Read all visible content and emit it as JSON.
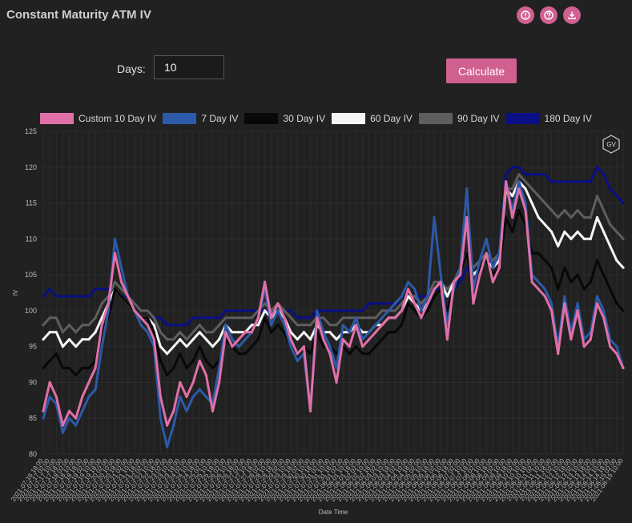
{
  "header": {
    "title": "Constant Maturity ATM IV",
    "icons": [
      "info-icon",
      "help-icon",
      "download-icon"
    ]
  },
  "form": {
    "days_label": "Days:",
    "days_value": "10",
    "calculate_label": "Calculate"
  },
  "watermark": "GV",
  "colors": {
    "accent": "#d06090",
    "background": "#212121"
  },
  "chart_data": {
    "type": "line",
    "xlabel": "Date Time",
    "ylabel": "IV",
    "ylim": [
      80,
      125
    ],
    "yticks": [
      80,
      85,
      90,
      95,
      100,
      105,
      110,
      115,
      120,
      125
    ],
    "grid": true,
    "legend_position": "top",
    "x": [
      "2021-07-16 18:00",
      "2021-07-17 02:00",
      "2021-07-17 10:00",
      "2021-07-17 18:00",
      "2021-07-18 02:00",
      "2021-07-18 10:00",
      "2021-07-18 18:00",
      "2021-07-19 02:00",
      "2021-07-19 10:00",
      "2021-07-19 18:00",
      "2021-07-20 02:00",
      "2021-07-20 10:00",
      "2021-07-20 18:00",
      "2021-07-21 02:00",
      "2021-07-21 10:00",
      "2021-07-21 18:00",
      "2021-07-22 02:00",
      "2021-07-22 10:00",
      "2021-07-22 18:00",
      "2021-07-23 02:00",
      "2021-07-23 10:00",
      "2021-07-23 18:00",
      "2021-07-24 02:00",
      "2021-07-24 10:00",
      "2021-07-24 18:00",
      "2021-07-25 02:00",
      "2021-07-25 10:00",
      "2021-07-25 18:00",
      "2021-07-26 02:00",
      "2021-07-26 10:00",
      "2021-07-26 18:00",
      "2021-07-27 02:00",
      "2021-07-27 10:00",
      "2021-07-27 18:00",
      "2021-07-28 02:00",
      "2021-07-28 10:00",
      "2021-07-28 18:00",
      "2021-07-29 02:00",
      "2021-07-29 10:00",
      "2021-07-29 18:00",
      "2021-07-30 02:00",
      "2021-07-30 10:00",
      "2021-07-30 18:00",
      "2021-07-31 02:00",
      "2021-07-31 10:00",
      "2021-07-31 18:00",
      "2021-08-01 02:00",
      "2021-08-01 10:00",
      "2021-08-01 18:00",
      "2021-08-02 02:00",
      "2021-08-02 10:00",
      "2021-08-02 18:00",
      "2021-08-03 02:00",
      "2021-08-03 10:00",
      "2021-08-03 18:00",
      "2021-08-04 02:00",
      "2021-08-04 10:00",
      "2021-08-04 18:00",
      "2021-08-05 02:00",
      "2021-08-05 10:00",
      "2021-08-05 18:00",
      "2021-08-06 02:00",
      "2021-08-06 10:00",
      "2021-08-06 18:00",
      "2021-08-07 02:00",
      "2021-08-07 10:00",
      "2021-08-07 18:00",
      "2021-08-08 02:00",
      "2021-08-08 10:00",
      "2021-08-08 18:00",
      "2021-08-09 02:00",
      "2021-08-09 10:00",
      "2021-08-09 18:00",
      "2021-08-10 02:00",
      "2021-08-10 10:00",
      "2021-08-10 18:00",
      "2021-08-11 02:00",
      "2021-08-11 10:00",
      "2021-08-11 18:00",
      "2021-08-12 02:00",
      "2021-08-12 10:00",
      "2021-08-12 18:00",
      "2021-08-13 02:00",
      "2021-08-13 10:00",
      "2021-08-13 18:00",
      "2021-08-14 02:00",
      "2021-08-14 10:00",
      "2021-08-14 18:00",
      "2021-08-15 02:00",
      "2021-08-15 10:00"
    ],
    "xtick_labels": [
      "2021-07-16 18:00",
      "2021-07-17 02:00",
      "2021-07-17 10:00",
      "2021-07-17 18:00",
      "2021-07-18 02:00",
      "2021-07-18 10:00",
      "2021-07-18 18:00",
      "2021-07-19 02:00",
      "2021-07-19 10:00",
      "2021-07-19 18:00",
      "2021-07-20 02:00",
      "2021-07-20 10:00",
      "2021-07-20 18:00",
      "2021-07-21 02:00",
      "2021-07-21 10:00",
      "2021-07-21 18:00",
      "2021-07-22 02:00",
      "2021-07-22 10:00",
      "2021-07-22 18:00",
      "2021-07-23 02:00",
      "2021-07-23 10:00",
      "2021-07-23 18:00",
      "2021-07-24 02:00",
      "2021-07-24 10:00",
      "2021-07-24 18:00",
      "2021-07-25 02:00",
      "2021-07-25 10:00",
      "2021-07-25 18:00",
      "2021-07-26 02:00",
      "2021-07-26 10:00",
      "2021-07-26 18:00",
      "2021-07-27 02:00",
      "2021-07-27 10:00",
      "2021-07-27 18:00",
      "2021-07-28 02:00",
      "2021-07-28 10:00",
      "2021-07-28 18:00",
      "2021-07-29 02:00",
      "2021-07-29 10:00",
      "2021-07-29 18:00",
      "2021-07-30 02:00",
      "2021-07-30 10:00",
      "2021-07-30 18:00",
      "2021-07-31 02:00",
      "2021-07-31 10:00",
      "2021-07-31 18:00",
      "2021-08-01 02:00",
      "2021-08-01 10:00",
      "2021-08-01 18:00",
      "2021-08-02 02:00",
      "2021-08-02 10:00",
      "2021-08-02 18:00",
      "2021-08-03 02:00",
      "2021-08-03 10:00",
      "2021-08-03 18:00",
      "2021-08-04 02:00",
      "2021-08-04 10:00",
      "2021-08-04 18:00",
      "2021-08-05 02:00",
      "2021-08-05 10:00",
      "2021-08-05 18:00",
      "2021-08-06 02:00",
      "2021-08-06 10:00",
      "2021-08-06 18:00",
      "2021-08-07 02:00",
      "2021-08-07 10:00",
      "2021-08-07 18:00",
      "2021-08-08 02:00",
      "2021-08-08 10:00",
      "2021-08-08 18:00",
      "2021-08-09 02:00",
      "2021-08-09 10:00",
      "2021-08-09 18:00",
      "2021-08-10 02:00",
      "2021-08-10 10:00",
      "2021-08-10 18:00",
      "2021-08-11 02:00",
      "2021-08-11 10:00",
      "2021-08-11 18:00",
      "2021-08-12 02:00",
      "2021-08-12 10:00",
      "2021-08-12 18:00",
      "2021-08-13 02:00",
      "2021-08-13 10:00",
      "2021-08-13 18:00",
      "2021-08-14 02:00",
      "2021-08-14 10:00",
      "2021-08-14 18:00",
      "2021-08-15 02:00",
      "2021-08-15 10:00"
    ],
    "series": [
      {
        "name": "Custom 10 Day IV",
        "color": "#e070a8",
        "values": [
          86,
          90,
          88,
          84,
          86,
          85,
          88,
          90,
          92,
          98,
          101,
          108,
          104,
          102,
          100,
          99,
          98,
          96,
          88,
          84,
          86,
          90,
          88,
          90,
          93,
          91,
          86,
          90,
          97,
          95,
          96,
          97,
          97,
          99,
          104,
          99,
          101,
          99,
          96,
          94,
          95,
          86,
          99,
          96,
          94,
          90,
          96,
          95,
          98,
          95,
          96,
          97,
          98,
          99,
          99,
          100,
          103,
          101,
          99,
          101,
          103,
          104,
          96,
          104,
          105,
          113,
          101,
          105,
          108,
          104,
          106,
          118,
          113,
          117,
          114,
          104,
          103,
          102,
          100,
          94,
          101,
          96,
          100,
          95,
          96,
          101,
          99,
          95,
          94,
          92
        ]
      },
      {
        "name": "7 Day IV",
        "color": "#2b5aa8",
        "values": [
          85,
          88,
          87,
          83,
          85,
          84,
          86,
          88,
          89,
          95,
          100,
          110,
          106,
          102,
          100,
          98,
          97,
          95,
          85,
          81,
          84,
          88,
          86,
          88,
          89,
          88,
          87,
          92,
          98,
          96,
          95,
          96,
          97,
          99,
          103,
          98,
          100,
          98,
          95,
          93,
          94,
          86,
          100,
          97,
          95,
          92,
          98,
          97,
          99,
          96,
          97,
          98,
          99,
          100,
          101,
          102,
          104,
          103,
          100,
          102,
          113,
          105,
          98,
          103,
          106,
          117,
          103,
          107,
          110,
          106,
          108,
          118,
          114,
          118,
          115,
          105,
          104,
          103,
          101,
          95,
          102,
          97,
          101,
          96,
          97,
          102,
          100,
          96,
          95,
          92
        ]
      },
      {
        "name": "30 Day IV",
        "color": "#080808",
        "values": [
          92,
          93,
          94,
          92,
          92,
          91,
          92,
          92,
          93,
          97,
          99,
          103,
          102,
          101,
          100,
          99,
          99,
          97,
          93,
          91,
          92,
          94,
          92,
          93,
          95,
          93,
          92,
          93,
          96,
          95,
          94,
          94,
          95,
          96,
          99,
          97,
          98,
          97,
          95,
          94,
          95,
          94,
          97,
          95,
          95,
          94,
          95,
          94,
          95,
          94,
          94,
          95,
          96,
          97,
          97,
          98,
          101,
          100,
          99,
          100,
          102,
          103,
          100,
          103,
          105,
          108,
          103,
          106,
          107,
          105,
          106,
          113,
          111,
          114,
          112,
          108,
          108,
          107,
          106,
          103,
          106,
          104,
          105,
          103,
          104,
          107,
          105,
          103,
          101,
          100
        ]
      },
      {
        "name": "60 Day IV",
        "color": "#f5f5f5",
        "values": [
          96,
          97,
          97,
          95,
          96,
          95,
          96,
          96,
          97,
          99,
          101,
          103,
          102,
          101,
          100,
          99,
          99,
          98,
          95,
          94,
          95,
          96,
          95,
          96,
          97,
          96,
          95,
          96,
          98,
          97,
          97,
          97,
          98,
          98,
          100,
          99,
          100,
          99,
          97,
          96,
          97,
          96,
          98,
          97,
          97,
          96,
          97,
          97,
          98,
          97,
          97,
          98,
          98,
          99,
          99,
          100,
          102,
          101,
          100,
          101,
          103,
          104,
          102,
          104,
          105,
          108,
          105,
          106,
          107,
          106,
          107,
          117,
          116,
          118,
          117,
          115,
          113,
          112,
          111,
          109,
          111,
          110,
          111,
          110,
          110,
          113,
          111,
          109,
          107,
          106
        ]
      },
      {
        "name": "90 Day IV",
        "color": "#5e5e5e",
        "values": [
          98,
          99,
          99,
          97,
          98,
          97,
          98,
          98,
          99,
          101,
          102,
          104,
          103,
          102,
          101,
          100,
          100,
          99,
          97,
          96,
          96,
          97,
          96,
          97,
          98,
          97,
          97,
          98,
          99,
          99,
          99,
          99,
          99,
          100,
          101,
          100,
          101,
          100,
          99,
          98,
          98,
          98,
          99,
          99,
          98,
          98,
          99,
          99,
          99,
          99,
          99,
          99,
          100,
          100,
          100,
          101,
          102,
          102,
          101,
          102,
          104,
          104,
          103,
          104,
          106,
          108,
          106,
          107,
          108,
          107,
          108,
          117,
          117,
          119,
          118,
          117,
          116,
          115,
          114,
          113,
          114,
          113,
          114,
          113,
          113,
          116,
          114,
          112,
          111,
          110
        ]
      },
      {
        "name": "180 Day IV",
        "color": "#0a0f85",
        "values": [
          102,
          103,
          102,
          102,
          102,
          102,
          102,
          102,
          103,
          103,
          103,
          103,
          102,
          102,
          101,
          100,
          100,
          99,
          99,
          98,
          98,
          98,
          98,
          99,
          99,
          99,
          99,
          99,
          100,
          100,
          100,
          100,
          100,
          100,
          100,
          100,
          100,
          100,
          100,
          99,
          99,
          99,
          100,
          100,
          100,
          100,
          100,
          100,
          100,
          100,
          101,
          101,
          101,
          101,
          101,
          101,
          102,
          102,
          102,
          102,
          103,
          103,
          103,
          103,
          104,
          106,
          105,
          106,
          107,
          106,
          107,
          119,
          120,
          120,
          119,
          119,
          119,
          119,
          118,
          118,
          118,
          118,
          118,
          118,
          118,
          120,
          119,
          117,
          116,
          115
        ]
      }
    ]
  }
}
